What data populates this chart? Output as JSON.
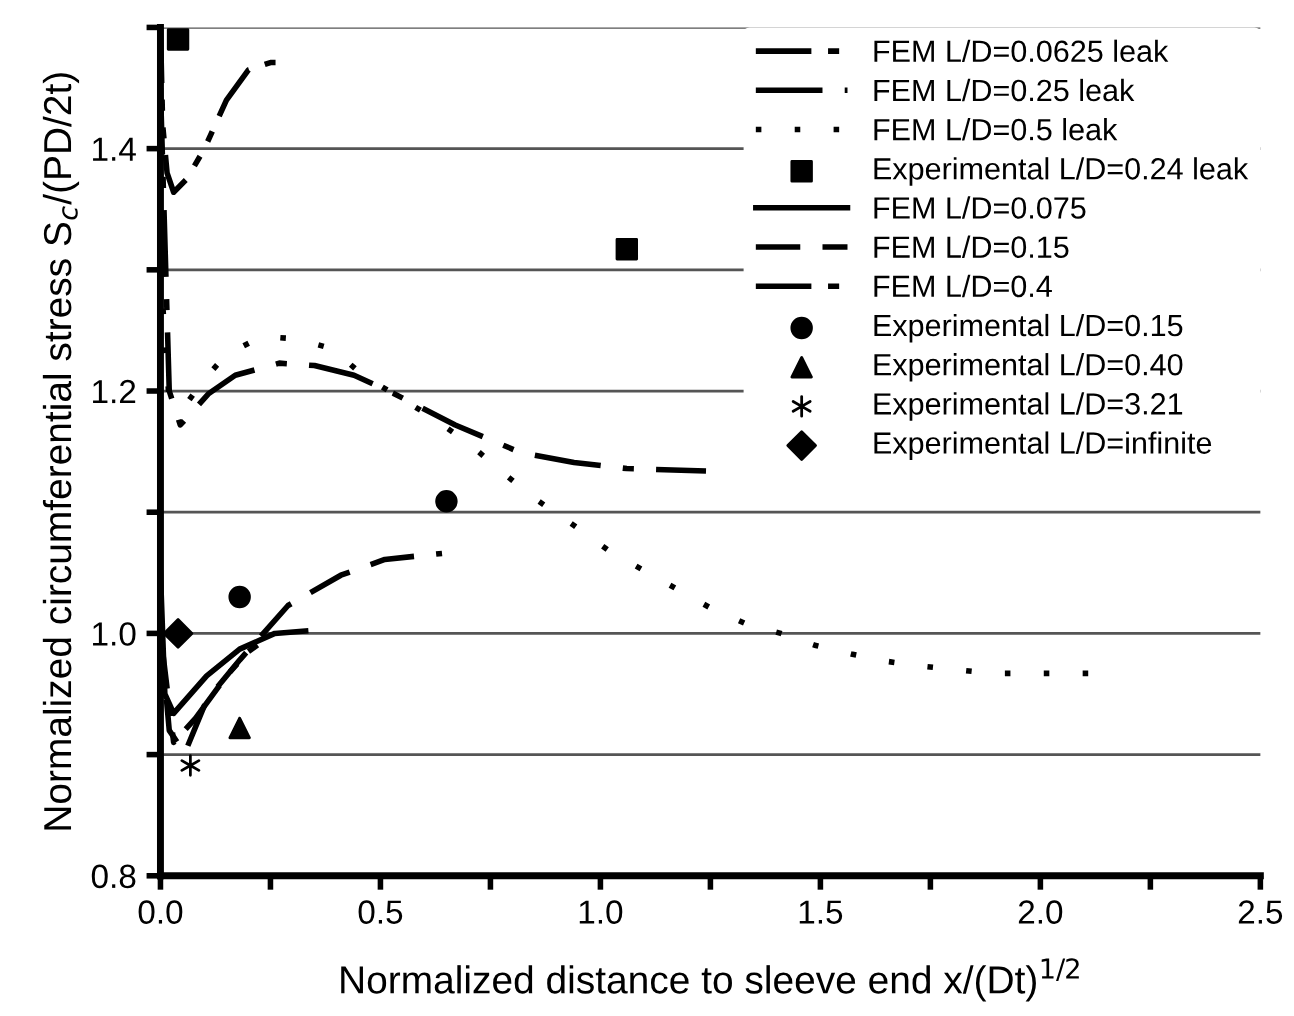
{
  "chart_data": {
    "type": "line",
    "xlabel": "Normalized distance to sleeve end x/(Dt)$^{1/2}$",
    "ylabel": "Normalized circumferential stress S$_{c}$/(PD/2t)",
    "xlim": [
      0,
      2.5
    ],
    "ylim": [
      0.8,
      1.5
    ],
    "xticks": [
      {
        "value": 0,
        "label": "0.0"
      },
      {
        "value": 0.25,
        "label": null
      },
      {
        "value": 0.5,
        "label": "0.5"
      },
      {
        "value": 0.75,
        "label": null
      },
      {
        "value": 1,
        "label": "1.0"
      },
      {
        "value": 1.25,
        "label": null
      },
      {
        "value": 1.5,
        "label": "1.5"
      },
      {
        "value": 1.75,
        "label": null
      },
      {
        "value": 2,
        "label": "2.0"
      },
      {
        "value": 2.25,
        "label": null
      },
      {
        "value": 2.5,
        "label": "2.5"
      }
    ],
    "yticks": [
      0.8,
      {
        "value": 0.9,
        "label": null
      },
      {
        "value": 1.0,
        "label": "1.0"
      },
      {
        "value": 1.1,
        "label": null
      },
      1.2,
      {
        "value": 1.3,
        "label": null
      },
      1.4,
      {
        "value": 1.5,
        "label": null
      }
    ],
    "grid": "y",
    "legend": "top right",
    "series": [
      {
        "name": "FEM L/D=0.0625 leak",
        "color": "#000000",
        "line_style": "dashdotdot",
        "marker": "none",
        "x": [
          0,
          0.005,
          0.015,
          0.03,
          0.06,
          0.1,
          0.15,
          0.2,
          0.25,
          0.27
        ],
        "values": [
          1.5,
          1.42,
          1.38,
          1.364,
          1.375,
          1.4,
          1.44,
          1.465,
          1.471,
          1.471
        ]
      },
      {
        "name": "FEM L/D=0.25 leak",
        "color": "#000000",
        "line_style": "dashdot",
        "marker": "none",
        "x": [
          0,
          0.02,
          0.045,
          0.11,
          0.17,
          0.27,
          0.35,
          0.44,
          0.53,
          0.67,
          0.82,
          0.94,
          1.06,
          1.24
        ],
        "values": [
          1.45,
          1.2,
          1.172,
          1.198,
          1.213,
          1.223,
          1.221,
          1.213,
          1.198,
          1.172,
          1.149,
          1.141,
          1.136,
          1.134
        ]
      },
      {
        "name": "FEM L/D=0.5 leak",
        "color": "#000000",
        "line_style": "dotted",
        "marker": "none",
        "x": [
          0,
          0.02,
          0.06,
          0.1,
          0.15,
          0.23,
          0.31,
          0.39,
          0.46,
          0.61,
          0.7,
          0.78,
          0.86,
          0.94,
          1.02,
          1.25,
          1.33,
          1.41,
          1.49,
          1.57,
          1.65,
          1.73,
          1.81,
          1.89,
          2.05,
          2.12
        ],
        "values": [
          1.3,
          1.19,
          1.19,
          1.21,
          1.23,
          1.245,
          1.243,
          1.235,
          1.213,
          1.18,
          1.157,
          1.132,
          1.109,
          1.089,
          1.068,
          1.021,
          1.008,
          1.0,
          0.99,
          0.983,
          0.977,
          0.973,
          0.97,
          0.967,
          0.967,
          0.967
        ]
      },
      {
        "name": "Experimental L/D=0.24 leak",
        "type": "scatter",
        "color": "#000000",
        "marker": "square",
        "x": [
          0.04,
          1.06
        ],
        "values": [
          1.49,
          1.317
        ]
      },
      {
        "name": "FEM L/D=0.075",
        "color": "#000000",
        "line_style": "solid",
        "marker": "none",
        "x": [
          0,
          0.01,
          0.03,
          0.105,
          0.18,
          0.26,
          0.33
        ],
        "values": [
          1.05,
          0.95,
          0.934,
          0.965,
          0.987,
          1.0,
          1.002
        ]
      },
      {
        "name": "FEM L/D=0.15",
        "color": "#000000",
        "line_style": "dashed",
        "marker": "none",
        "x": [
          0,
          0.02,
          0.055,
          0.105,
          0.18,
          0.29,
          0.41,
          0.51,
          0.64
        ],
        "values": [
          1.0,
          0.92,
          0.901,
          0.945,
          0.978,
          1.023,
          1.048,
          1.061,
          1.066
        ]
      },
      {
        "name": "FEM L/D=0.4",
        "color": "#000000",
        "line_style": "dashdotdot",
        "marker": "none",
        "x": [
          0,
          0.03,
          0.08,
          0.15,
          0.2,
          0.25
        ],
        "values": [
          1.0,
          0.91,
          0.93,
          0.965,
          0.985,
          0.998
        ]
      },
      {
        "name": "Experimental L/D=0.15",
        "type": "scatter",
        "color": "#000000",
        "marker": "circle",
        "x": [
          0.18,
          0.65
        ],
        "values": [
          1.03,
          1.109
        ]
      },
      {
        "name": "Experimental L/D=0.40",
        "type": "scatter",
        "color": "#000000",
        "marker": "triangle",
        "x": [
          0.18
        ],
        "values": [
          0.922
        ]
      },
      {
        "name": "Experimental L/D=3.21",
        "type": "scatter",
        "color": "#000000",
        "marker": "cross",
        "x": [
          0.068
        ],
        "values": [
          0.891
        ]
      },
      {
        "name": "Experimental L/D=infinite",
        "type": "scatter",
        "color": "#000000",
        "marker": "diamond",
        "x": [
          0.04
        ],
        "values": [
          1.0
        ]
      }
    ]
  }
}
